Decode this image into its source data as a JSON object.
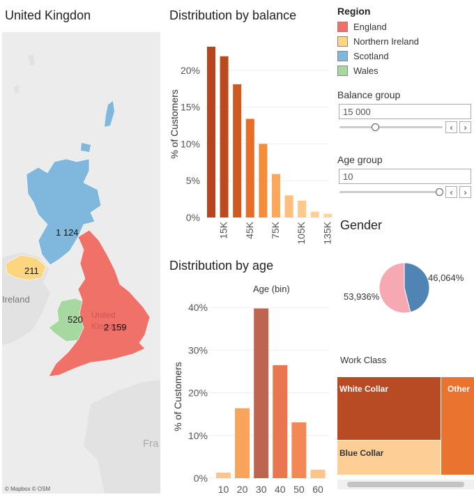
{
  "map": {
    "title": "United Kingdon",
    "attribution": "© Mapbox © OSM",
    "labels": {
      "ireland": "Ireland",
      "uk": "United Kingdom",
      "france": "Fra"
    },
    "regions": [
      {
        "name": "England",
        "value": "2 159",
        "color": "#f07167"
      },
      {
        "name": "Northern Ireland",
        "value": "211",
        "color": "#fcd57f"
      },
      {
        "name": "Scotland",
        "value": "1 124",
        "color": "#7fb8dc"
      },
      {
        "name": "Wales",
        "value": "520",
        "color": "#a6d8a0"
      }
    ]
  },
  "legend": {
    "title": "Region",
    "items": [
      {
        "label": "England",
        "color": "#f07167"
      },
      {
        "label": "Northern Ireland",
        "color": "#fcd57f"
      },
      {
        "label": "Scotland",
        "color": "#7fb8dc"
      },
      {
        "label": "Wales",
        "color": "#a6d8a0"
      }
    ]
  },
  "params": {
    "balance": {
      "label": "Balance group",
      "value": "15 000",
      "position": 0.35
    },
    "age": {
      "label": "Age group",
      "value": "10",
      "position": 0.97
    }
  },
  "chart_data": [
    {
      "type": "bar",
      "title": "Distribution by balance",
      "ylabel": "% of Customers",
      "x": [
        0,
        15000,
        30000,
        45000,
        60000,
        75000,
        90000,
        105000,
        120000,
        135000
      ],
      "xticks": [
        "15K",
        "45K",
        "75K",
        "105K",
        "135K"
      ],
      "xtick_values": [
        15000,
        45000,
        75000,
        105000,
        135000
      ],
      "values": [
        23.2,
        21.9,
        18.1,
        13.4,
        10.0,
        5.9,
        3.0,
        2.3,
        0.8,
        0.5
      ],
      "colors": [
        "#b5441f",
        "#bd4a1f",
        "#cd5a22",
        "#e76d29",
        "#f68c3a",
        "#fba85a",
        "#fdbf7c",
        "#fdc98d",
        "#fdd09a",
        "#fdd3a0"
      ],
      "yticks": [
        "0%",
        "5%",
        "10%",
        "15%",
        "20%"
      ],
      "ytick_values": [
        0,
        5,
        10,
        15,
        20
      ],
      "ylim": [
        0,
        25
      ]
    },
    {
      "type": "bar",
      "title": "Distribution by age",
      "subtitle": "Age (bin)",
      "ylabel": "% of Customers",
      "categories": [
        "10",
        "20",
        "30",
        "40",
        "50",
        "60"
      ],
      "values": [
        1.3,
        16.4,
        39.8,
        26.5,
        13.1,
        2.0
      ],
      "colors": [
        "#fdc48e",
        "#faa35b",
        "#bd6550",
        "#e8764f",
        "#f28955",
        "#fdc48e"
      ],
      "yticks": [
        "0%",
        "10%",
        "20%",
        "30%",
        "40%"
      ],
      "ytick_values": [
        0,
        10,
        20,
        30,
        40
      ],
      "ylim": [
        0,
        42
      ]
    },
    {
      "type": "pie",
      "title": "Gender",
      "slices": [
        {
          "label": "46,064%",
          "value": 46.064,
          "color": "#4f84b5"
        },
        {
          "label": "53,936%",
          "value": 53.936,
          "color": "#f7a9b3"
        }
      ]
    },
    {
      "type": "treemap",
      "title": "Work Class",
      "items": [
        {
          "label": "White Collar",
          "color": "#b84a24"
        },
        {
          "label": "Blue Collar",
          "color": "#fdcf96"
        },
        {
          "label": "Other",
          "color": "#eb7330"
        }
      ]
    }
  ]
}
